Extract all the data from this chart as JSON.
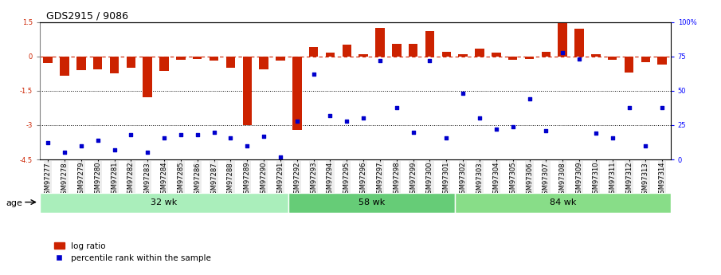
{
  "title": "GDS2915 / 9086",
  "samples": [
    "GSM97277",
    "GSM97278",
    "GSM97279",
    "GSM97280",
    "GSM97281",
    "GSM97282",
    "GSM97283",
    "GSM97284",
    "GSM97285",
    "GSM97286",
    "GSM97287",
    "GSM97288",
    "GSM97289",
    "GSM97290",
    "GSM97291",
    "GSM97292",
    "GSM97293",
    "GSM97294",
    "GSM97295",
    "GSM97296",
    "GSM97297",
    "GSM97298",
    "GSM97299",
    "GSM97300",
    "GSM97301",
    "GSM97302",
    "GSM97303",
    "GSM97304",
    "GSM97305",
    "GSM97306",
    "GSM97307",
    "GSM97308",
    "GSM97309",
    "GSM97310",
    "GSM97311",
    "GSM97312",
    "GSM97313",
    "GSM97314"
  ],
  "log_ratio": [
    -0.3,
    -0.85,
    -0.6,
    -0.55,
    -0.75,
    -0.5,
    -1.8,
    -0.65,
    -0.15,
    -0.1,
    -0.2,
    -0.5,
    -3.0,
    -0.55,
    -0.2,
    -3.2,
    0.4,
    0.15,
    0.5,
    0.1,
    1.25,
    0.55,
    0.55,
    1.1,
    0.2,
    0.1,
    0.35,
    0.15,
    -0.15,
    -0.1,
    0.2,
    1.55,
    1.2,
    0.1,
    -0.15,
    -0.7,
    -0.25,
    -0.35
  ],
  "percentile": [
    12,
    5,
    10,
    14,
    7,
    18,
    5,
    16,
    18,
    18,
    20,
    16,
    10,
    17,
    2,
    28,
    62,
    32,
    28,
    30,
    72,
    38,
    20,
    72,
    16,
    48,
    30,
    22,
    24,
    44,
    21,
    78,
    73,
    19,
    16,
    38,
    10,
    38
  ],
  "groups": [
    {
      "label": "32 wk",
      "start": 0,
      "end": 15,
      "color": "#aaeebb"
    },
    {
      "label": "58 wk",
      "start": 15,
      "end": 25,
      "color": "#66cc77"
    },
    {
      "label": "84 wk",
      "start": 25,
      "end": 38,
      "color": "#88dd88"
    }
  ],
  "ylim": [
    -4.5,
    1.5
  ],
  "yticks_left": [
    -4.5,
    -3.0,
    -1.5,
    0.0,
    1.5
  ],
  "yticks_right_vals": [
    0,
    25,
    50,
    75,
    100
  ],
  "yticks_right_labels": [
    "0",
    "25",
    "50",
    "75",
    "100%"
  ],
  "bar_color": "#cc2200",
  "dot_color": "#0000cc",
  "bar_width": 0.55,
  "age_label": "age",
  "legend_log": "log ratio",
  "legend_pct": "percentile rank within the sample",
  "title_fontsize": 9,
  "tick_fontsize": 6,
  "group_fontsize": 8,
  "legend_fontsize": 7.5
}
